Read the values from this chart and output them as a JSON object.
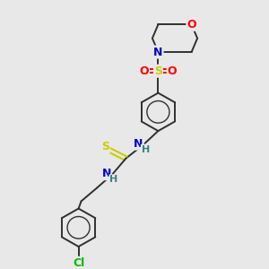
{
  "bg_color": "#e8e8e8",
  "bond_color": "#303030",
  "atom_colors": {
    "O": "#ff0000",
    "N": "#0000cc",
    "S": "#cccc00",
    "Cl": "#00bb00",
    "H": "#408080"
  },
  "figsize": [
    3.0,
    3.0
  ],
  "dpi": 100
}
